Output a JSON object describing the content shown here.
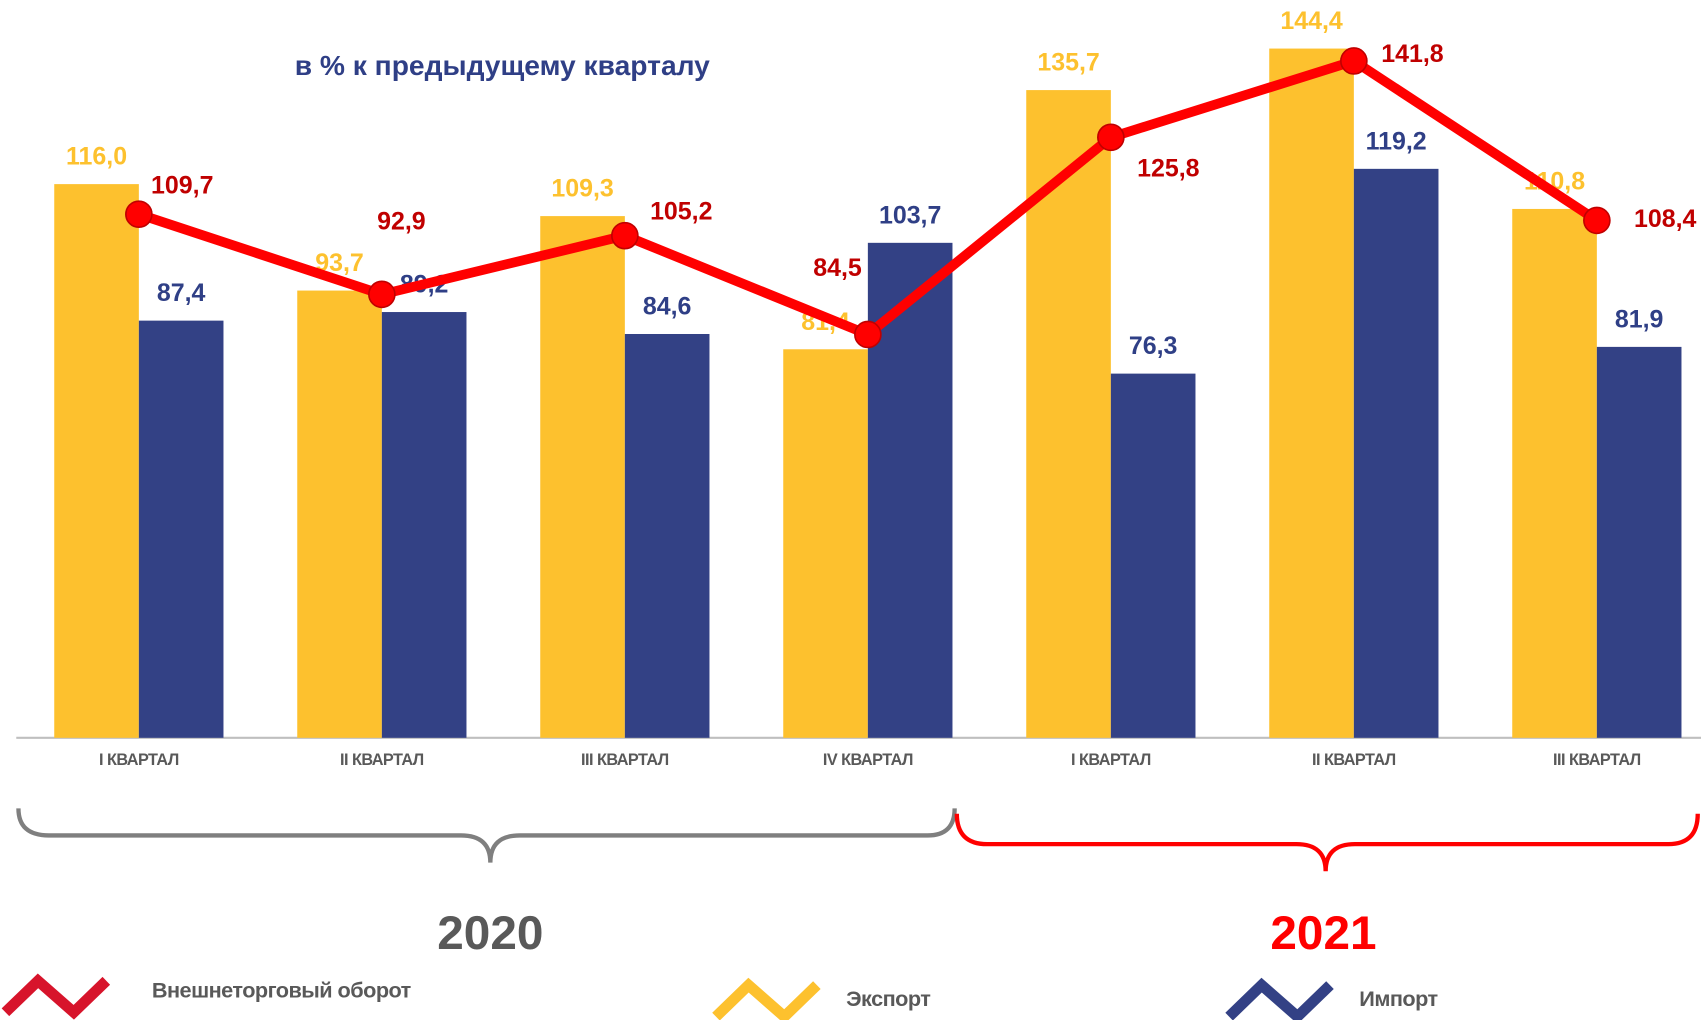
{
  "chart_data": {
    "type": "bar",
    "subtitle": "в % к предыдущему кварталу",
    "categories": [
      "I КВАРТАЛ",
      "II КВАРТАЛ",
      "III КВАРТАЛ",
      "IV КВАРТАЛ",
      "I КВАРТАЛ",
      "II КВАРТАЛ",
      "III КВАРТАЛ"
    ],
    "groups": [
      "2020",
      "2021"
    ],
    "ylim": [
      0,
      150
    ],
    "series": [
      {
        "name": "Экспорт",
        "type": "bar",
        "color": "#FDC12E",
        "values": [
          116.0,
          93.7,
          109.3,
          81.4,
          135.7,
          144.4,
          110.8
        ],
        "value_labels": [
          "116,0",
          "93,7",
          "109,3",
          "81,4",
          "135,7",
          "144,4",
          "110,8"
        ]
      },
      {
        "name": "Импорт",
        "type": "bar",
        "color": "#334185",
        "values": [
          87.4,
          89.2,
          84.6,
          103.7,
          76.3,
          119.2,
          81.9
        ],
        "value_labels": [
          "87,4",
          "89,2",
          "84,6",
          "103,7",
          "76,3",
          "119,2",
          "81,9"
        ]
      },
      {
        "name": "Внешнеторговый оборот",
        "type": "line",
        "color": "#FF0000",
        "values": [
          109.7,
          92.9,
          105.2,
          84.5,
          125.8,
          141.8,
          108.4
        ],
        "value_labels": [
          "109,7",
          "92,9",
          "105,2",
          "84,5",
          "125,8",
          "141,8",
          "108,4"
        ]
      }
    ]
  }
}
